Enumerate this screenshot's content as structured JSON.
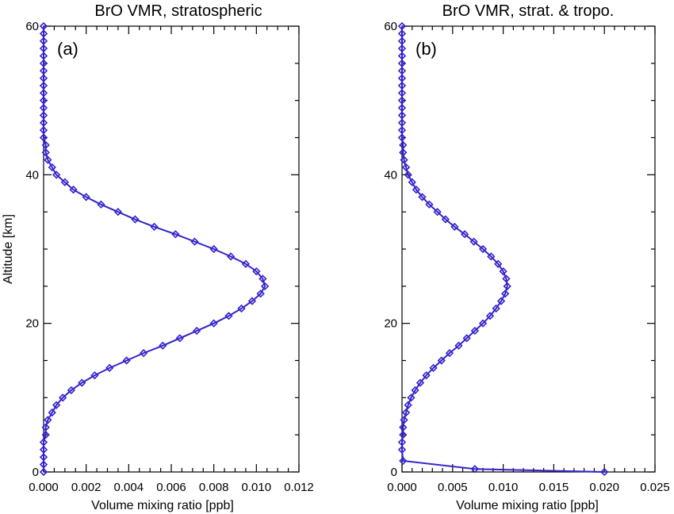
{
  "chart_data": [
    {
      "type": "line",
      "title": "BrO VMR, stratospheric",
      "panel_label": "(a)",
      "xlabel": "Volume mixing ratio [ppb]",
      "ylabel": "Altitude [km]",
      "xlim": [
        0,
        0.012
      ],
      "ylim": [
        0,
        60
      ],
      "xticks": [
        0,
        0.002,
        0.004,
        0.006,
        0.008,
        0.01,
        0.012
      ],
      "xtick_labels": [
        "0.000",
        "0.002",
        "0.004",
        "0.006",
        "0.008",
        "0.010",
        "0.012"
      ],
      "yticks": [
        0,
        20,
        40,
        60
      ],
      "ytick_labels": [
        "0",
        "20",
        "40",
        "60"
      ],
      "grid": false,
      "color": "#3322cc",
      "marker": "diamond",
      "series": [
        {
          "x": [
            0.0,
            0.0,
            0.0,
            0.0,
            0.0,
            0.0001,
            0.0001,
            0.0002,
            0.0004,
            0.0006,
            0.0009,
            0.0013,
            0.0018,
            0.0024,
            0.0031,
            0.0039,
            0.0047,
            0.0056,
            0.0064,
            0.0072,
            0.008,
            0.0087,
            0.0093,
            0.0098,
            0.0102,
            0.0104,
            0.0103,
            0.01,
            0.0095,
            0.0088,
            0.008,
            0.0071,
            0.0062,
            0.0052,
            0.0043,
            0.0035,
            0.0027,
            0.002,
            0.0014,
            0.001,
            0.0006,
            0.0004,
            0.0002,
            0.0001,
            0.0001,
            0.0,
            0.0,
            0.0,
            0.0,
            0.0,
            0.0,
            0.0,
            0.0,
            0.0,
            0.0,
            0.0,
            0.0,
            0.0,
            0.0,
            0.0,
            0.0
          ],
          "y": [
            0,
            1,
            2,
            3,
            4,
            5,
            6,
            7,
            8,
            9,
            10,
            11,
            12,
            13,
            14,
            15,
            16,
            17,
            18,
            19,
            20,
            21,
            22,
            23,
            24,
            25,
            26,
            27,
            28,
            29,
            30,
            31,
            32,
            33,
            34,
            35,
            36,
            37,
            38,
            39,
            40,
            41,
            42,
            43,
            44,
            45,
            46,
            47,
            48,
            49,
            50,
            51,
            52,
            53,
            54,
            55,
            56,
            57,
            58,
            59,
            60
          ]
        }
      ]
    },
    {
      "type": "line",
      "title": "BrO VMR, strat. & tropo.",
      "panel_label": "(b)",
      "xlabel": "Volume mixing ratio [ppb]",
      "ylabel": "",
      "xlim": [
        0,
        0.025
      ],
      "ylim": [
        0,
        60
      ],
      "xticks": [
        0,
        0.005,
        0.01,
        0.015,
        0.02,
        0.025
      ],
      "xtick_labels": [
        "0.000",
        "0.005",
        "0.010",
        "0.015",
        "0.020",
        "0.025"
      ],
      "yticks": [
        0,
        20,
        40,
        60
      ],
      "ytick_labels": [
        "0",
        "20",
        "40",
        "60"
      ],
      "grid": false,
      "color": "#3322cc",
      "marker": "diamond",
      "series": [
        {
          "x": [
            0.02,
            0.0072,
            0.0001,
            0.0,
            0.0,
            0.0001,
            0.0001,
            0.0002,
            0.0004,
            0.0006,
            0.0009,
            0.0013,
            0.0018,
            0.0024,
            0.0031,
            0.0039,
            0.0047,
            0.0056,
            0.0064,
            0.0072,
            0.008,
            0.0087,
            0.0093,
            0.0098,
            0.0102,
            0.0104,
            0.0103,
            0.01,
            0.0095,
            0.0088,
            0.008,
            0.0071,
            0.0062,
            0.0052,
            0.0043,
            0.0035,
            0.0027,
            0.002,
            0.0014,
            0.001,
            0.0006,
            0.0004,
            0.0002,
            0.0001,
            0.0001,
            0.0,
            0.0,
            0.0,
            0.0,
            0.0,
            0.0,
            0.0,
            0.0,
            0.0,
            0.0,
            0.0,
            0.0,
            0.0,
            0.0,
            0.0,
            0.0
          ],
          "y": [
            0,
            0.4,
            1.5,
            3,
            4,
            5,
            6,
            7,
            8,
            9,
            10,
            11,
            12,
            13,
            14,
            15,
            16,
            17,
            18,
            19,
            20,
            21,
            22,
            23,
            24,
            25,
            26,
            27,
            28,
            29,
            30,
            31,
            32,
            33,
            34,
            35,
            36,
            37,
            38,
            39,
            40,
            41,
            42,
            43,
            44,
            45,
            46,
            47,
            48,
            49,
            50,
            51,
            52,
            53,
            54,
            55,
            56,
            57,
            58,
            59,
            60
          ]
        }
      ]
    }
  ]
}
